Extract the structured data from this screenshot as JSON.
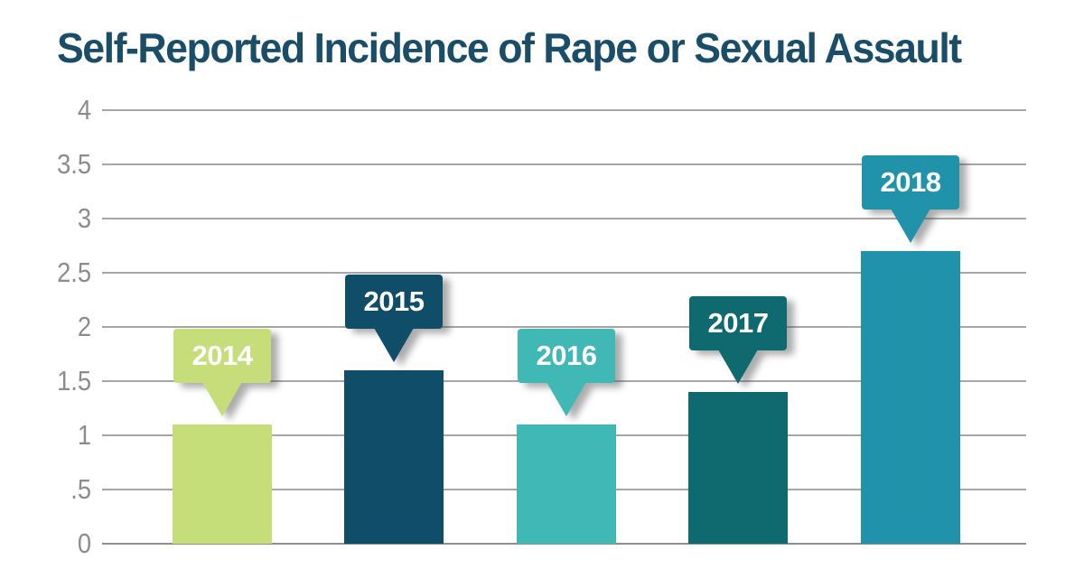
{
  "page": {
    "background_color": "#ffffff"
  },
  "title": {
    "text": "Self-Reported Incidence of Rape or Sexual Assault",
    "color": "#1a4e68"
  },
  "chart_data": {
    "type": "bar",
    "title": "Self-Reported Incidence of Rape or Sexual Assault",
    "categories": [
      "2014",
      "2015",
      "2016",
      "2017",
      "2018"
    ],
    "values": [
      1.1,
      1.6,
      1.1,
      1.4,
      2.7
    ],
    "bar_colors": [
      "#c5de7a",
      "#0f4d68",
      "#3fb8b6",
      "#0e6a6e",
      "#2093aa"
    ],
    "xlabel": "",
    "ylabel": "",
    "ylim": [
      0,
      4
    ],
    "ytick_labels": [
      "4",
      "3.5",
      "3",
      "2.5",
      "2",
      "1.5",
      "1",
      ".5",
      "0"
    ],
    "grid": true,
    "legend": "none",
    "annotation_style": "each bar labeled with its year in a matching-color callout bubble with downward pointer above the bar",
    "grid_color": "#a6a6a6",
    "baseline_color": "#8f8f8f",
    "tick_label_color": "#8c8c8c",
    "callout_text_color": "#ffffff"
  }
}
